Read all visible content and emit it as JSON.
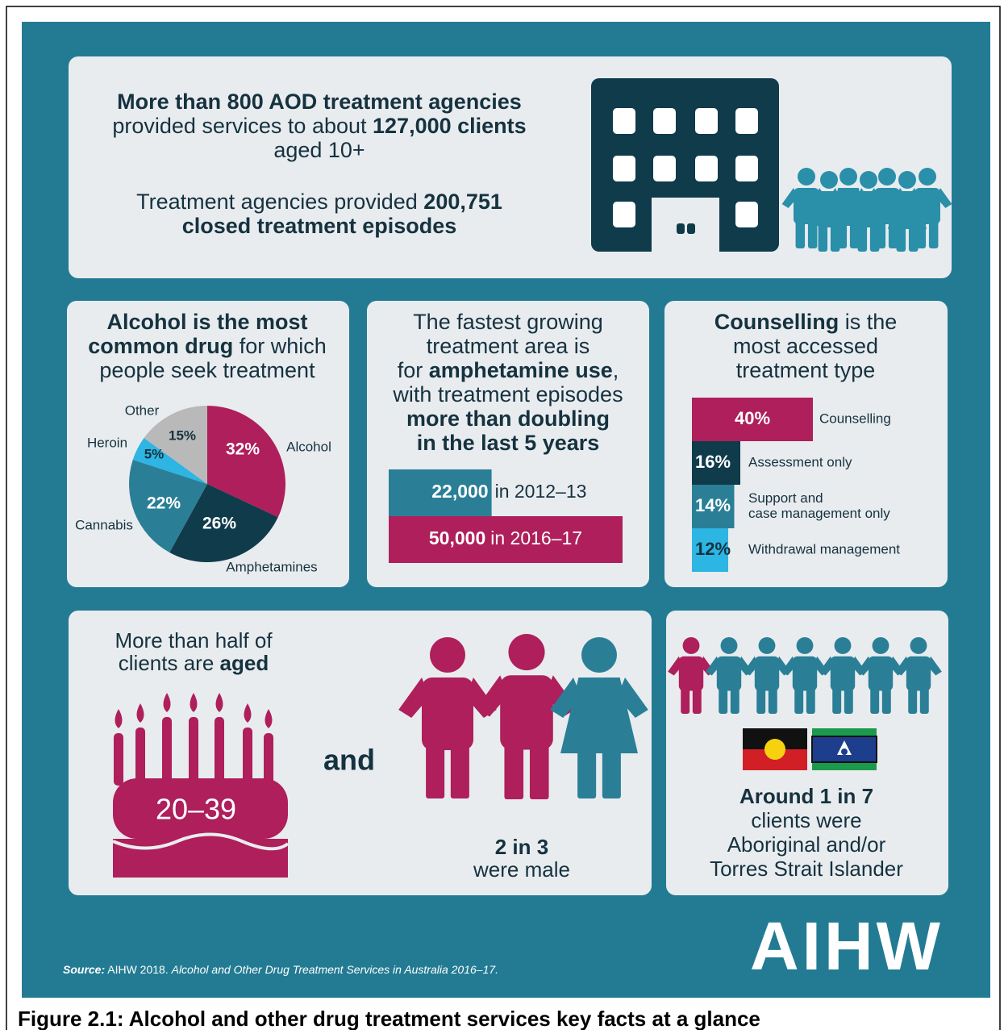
{
  "agencies": {
    "lines": [
      [
        "More than 800 AOD treatment agencies"
      ],
      [
        "provided services to about ",
        "127,000 clients"
      ],
      [
        "aged 10+"
      ],
      [
        "Treatment agencies provided ",
        "200,751"
      ],
      [
        "closed treatment episodes"
      ]
    ]
  },
  "chart_data": [
    {
      "type": "pie",
      "title": [
        [
          "Alcohol is the most"
        ],
        [
          "common drug",
          " for which"
        ],
        [
          "people seek treatment"
        ]
      ],
      "categories": [
        "Alcohol",
        "Amphetamines",
        "Cannabis",
        "Heroin",
        "Other"
      ],
      "values": [
        32,
        26,
        22,
        5,
        15
      ],
      "value_labels": [
        "32%",
        "26%",
        "22%",
        "5%",
        "15%"
      ],
      "colors": [
        "#ae1f5b",
        "#0f3b4b",
        "#2a7f97",
        "#2db5e3",
        "#b9b9b9"
      ]
    },
    {
      "type": "bar",
      "title": [
        [
          "The fastest growing"
        ],
        [
          "treatment area is"
        ],
        [
          "for ",
          "amphetamine use",
          ","
        ],
        [
          "with treatment episodes"
        ],
        [
          "more than doubling"
        ],
        [
          "in the last 5 years"
        ]
      ],
      "categories": [
        "in 2012–13",
        "in 2016–17"
      ],
      "values": [
        22000,
        50000
      ],
      "value_labels": [
        "22,000",
        "50,000"
      ],
      "colors": [
        "#2a7f97",
        "#ae1f5b"
      ]
    },
    {
      "type": "bar",
      "title": [
        [
          "Counselling",
          " is the"
        ],
        [
          "most accessed"
        ],
        [
          "treatment type"
        ]
      ],
      "categories": [
        "Counselling",
        "Assessment only",
        "Support and case management only",
        "Withdrawal management"
      ],
      "values": [
        40,
        16,
        14,
        12
      ],
      "value_labels": [
        "40%",
        "16%",
        "14%",
        "12%"
      ],
      "colors": [
        "#ae1f5b",
        "#0f3b4b",
        "#2a7f97",
        "#2db5e3"
      ]
    }
  ],
  "age": {
    "lines": [
      [
        "More than half of"
      ],
      [
        "clients are ",
        "aged"
      ]
    ],
    "cake_label": "20–39",
    "connector": "and",
    "stat": "2 in 3",
    "stat_text": "were male"
  },
  "indigenous": {
    "lines": [
      [
        "Around 1 in 7"
      ],
      [
        "clients were"
      ],
      [
        "Aboriginal and/or"
      ],
      [
        "Torres Strait Islander"
      ]
    ]
  },
  "source": [
    "Source:",
    " AIHW 2018. ",
    "Alcohol and Other Drug Treatment Services in Australia 2016–17."
  ],
  "logo": "AIHW",
  "caption": "Figure 2.1: Alcohol and other drug treatment services key facts at a glance"
}
